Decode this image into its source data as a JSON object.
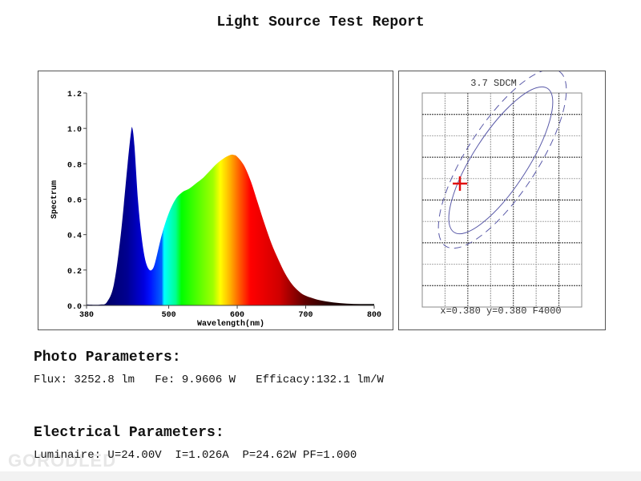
{
  "report": {
    "title": "Light Source Test Report",
    "watermark": "GORODLED"
  },
  "chart_data": [
    {
      "type": "area",
      "title": "",
      "xlabel": "Wavelength(nm)",
      "ylabel": "Spectrum",
      "xlim": [
        380,
        800
      ],
      "ylim": [
        0,
        1.2
      ],
      "x_ticks": [
        "380",
        "500",
        "600",
        "700",
        "800"
      ],
      "y_ticks": [
        "0.0",
        "0.2",
        "0.4",
        "0.6",
        "0.8",
        "1.0",
        "1.2"
      ],
      "fill": "visible-spectrum gradient",
      "grid": false,
      "x": [
        380,
        400,
        410,
        420,
        430,
        440,
        445,
        447,
        450,
        455,
        460,
        465,
        470,
        475,
        480,
        490,
        500,
        510,
        520,
        530,
        540,
        550,
        560,
        570,
        580,
        590,
        595,
        600,
        610,
        620,
        630,
        640,
        650,
        660,
        670,
        680,
        690,
        700,
        720,
        740,
        760,
        780,
        800
      ],
      "y": [
        0.005,
        0.005,
        0.02,
        0.12,
        0.4,
        0.8,
        0.98,
        1.0,
        0.9,
        0.6,
        0.4,
        0.27,
        0.21,
        0.2,
        0.24,
        0.4,
        0.52,
        0.6,
        0.64,
        0.66,
        0.69,
        0.72,
        0.76,
        0.8,
        0.83,
        0.85,
        0.85,
        0.84,
        0.79,
        0.7,
        0.58,
        0.46,
        0.35,
        0.26,
        0.18,
        0.12,
        0.08,
        0.055,
        0.03,
        0.017,
        0.01,
        0.008,
        0.008
      ]
    },
    {
      "type": "scatter",
      "title": "3.7 SDCM",
      "point": {
        "x": 0.38,
        "y": 0.38
      },
      "footer": "x=0.380 y=0.380 F4000",
      "grid": true,
      "colors": {
        "ellipse": "#5a5aa8",
        "point": "#e01010"
      }
    }
  ],
  "photo": {
    "heading": "Photo Parameters:",
    "line": "Flux: 3252.8 lm   Fe: 9.9606 W   Efficacy:132.1 lm/W"
  },
  "electrical": {
    "heading": "Electrical Parameters:",
    "line": "Luminaire: U=24.00V  I=1.026A  P=24.62W PF=1.000"
  }
}
